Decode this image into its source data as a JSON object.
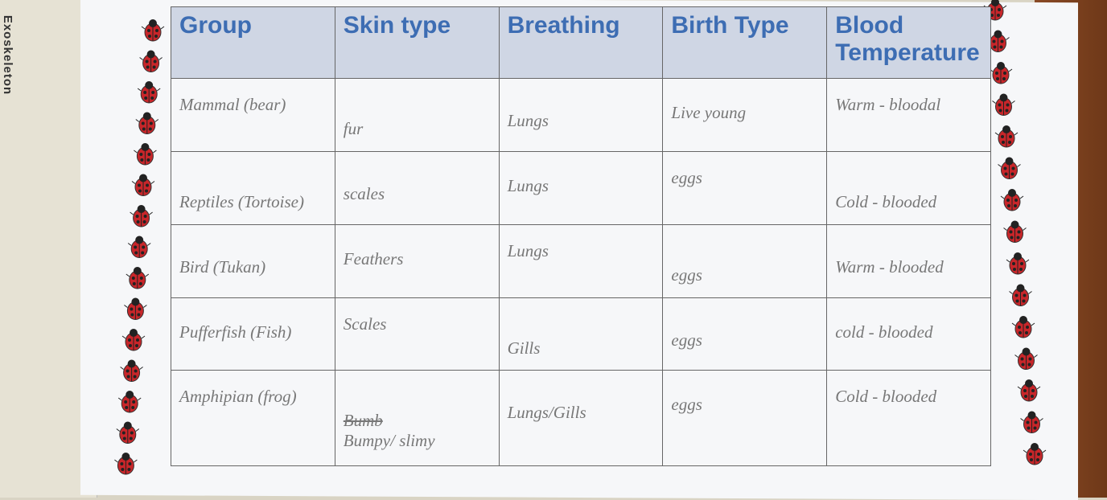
{
  "side_label": "Exoskeleton",
  "table": {
    "header": [
      "Group",
      "Skin type",
      "Breathing",
      "Birth Type",
      "Blood Temperature"
    ],
    "rows": [
      [
        "Mammal (bear)",
        "fur",
        "Lungs",
        "Live young",
        "Warm - bloodal"
      ],
      [
        "Reptiles (Tortoise)",
        "scales",
        "Lungs",
        "eggs",
        "Cold - blooded"
      ],
      [
        "Bird (Tukan)",
        "Feathers",
        "Lungs",
        "eggs",
        "Warm - blooded"
      ],
      [
        "Pufferfish (Fish)",
        "Scales",
        "Gills",
        "eggs",
        "cold - blooded"
      ],
      [
        "Amphipian (frog)",
        "Bumpy/ slimy",
        "Lungs/Gills",
        "eggs",
        "Cold - blooded"
      ]
    ],
    "struck_text": "Bumb"
  }
}
